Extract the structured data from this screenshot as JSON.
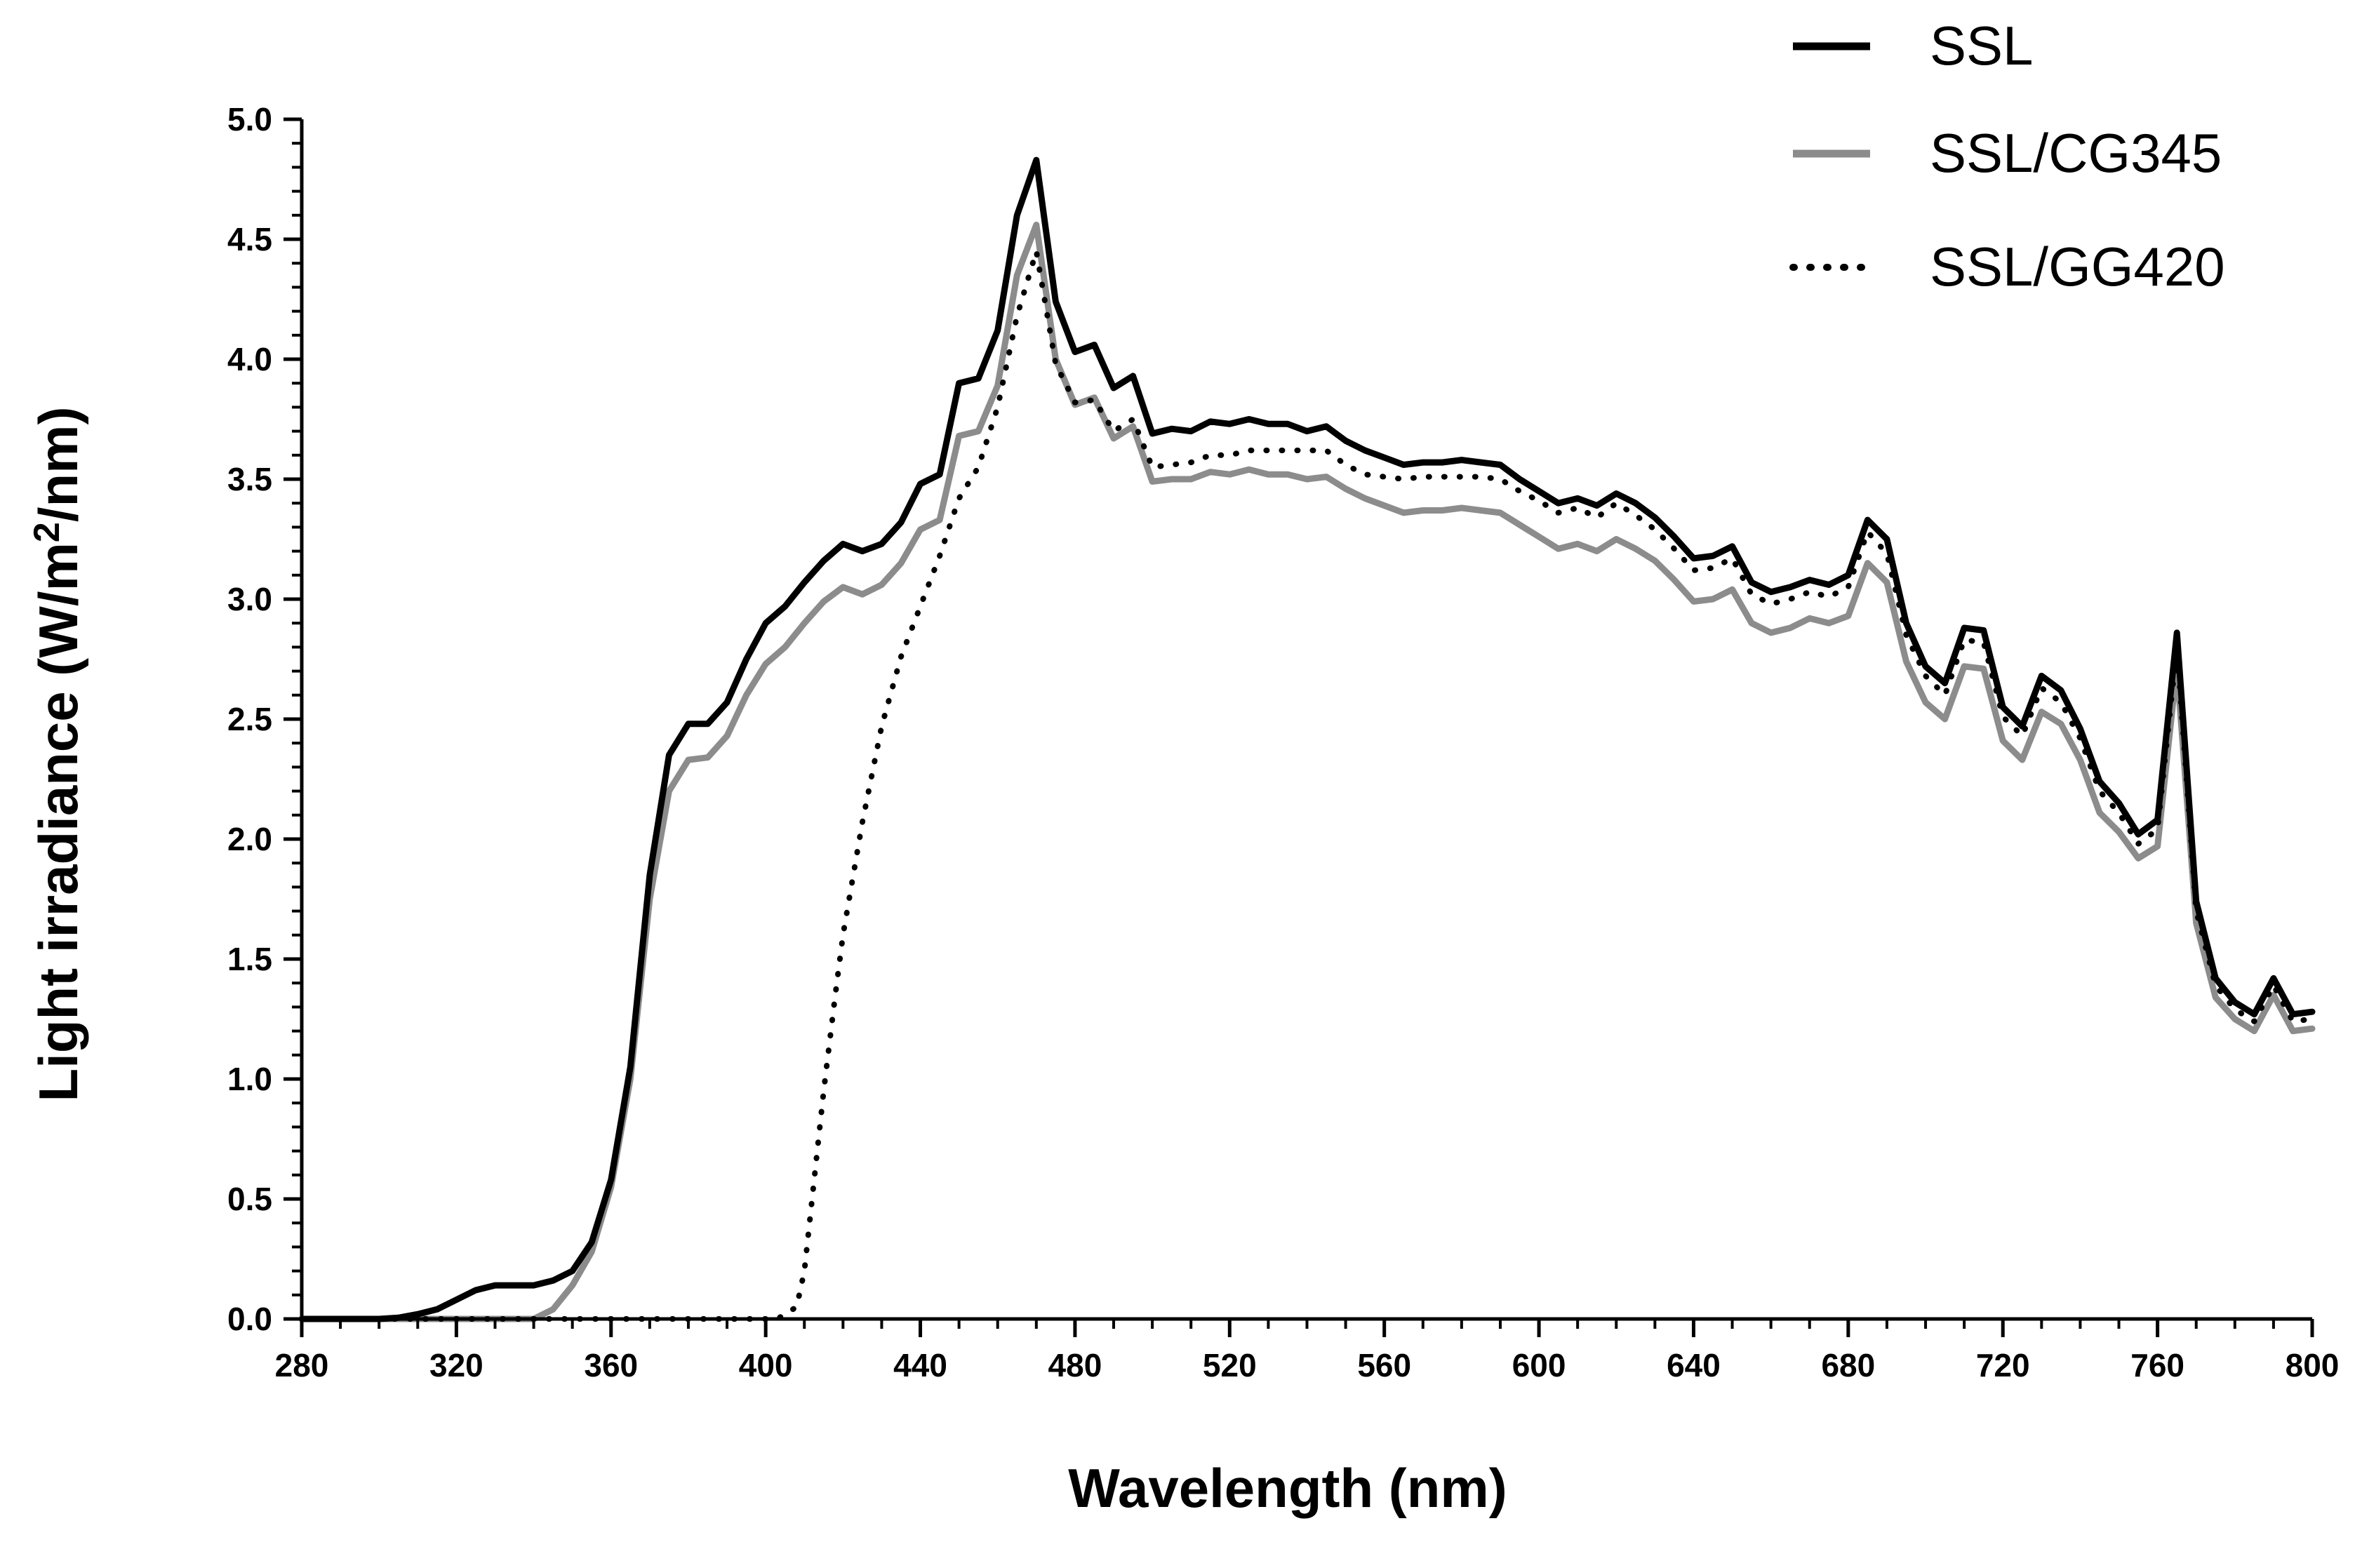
{
  "chart_data": {
    "type": "line",
    "title": "",
    "xlabel": "Wavelength (nm)",
    "ylabel_main": "Light irradiance (W/m",
    "ylabel_sup": "2",
    "ylabel_tail": "/nm)",
    "xlim": [
      280,
      800
    ],
    "ylim": [
      0,
      5
    ],
    "x_ticks": [
      280,
      320,
      360,
      400,
      440,
      480,
      520,
      560,
      600,
      640,
      680,
      720,
      760,
      800
    ],
    "y_ticks": [
      "0.0",
      "0.5",
      "1.0",
      "1.5",
      "2.0",
      "2.5",
      "3.0",
      "3.5",
      "4.0",
      "4.5",
      "5.0"
    ],
    "legend_position": "top-right",
    "series": [
      {
        "name": "SSL",
        "color": "#000000",
        "style": "solid",
        "points": [
          [
            280,
            0
          ],
          [
            290,
            0
          ],
          [
            300,
            0
          ],
          [
            305,
            0.005
          ],
          [
            310,
            0.02
          ],
          [
            315,
            0.04
          ],
          [
            320,
            0.08
          ],
          [
            325,
            0.12
          ],
          [
            330,
            0.14
          ],
          [
            335,
            0.14
          ],
          [
            340,
            0.14
          ],
          [
            345,
            0.16
          ],
          [
            350,
            0.2
          ],
          [
            355,
            0.32
          ],
          [
            360,
            0.58
          ],
          [
            365,
            1.05
          ],
          [
            370,
            1.85
          ],
          [
            375,
            2.35
          ],
          [
            380,
            2.48
          ],
          [
            385,
            2.48
          ],
          [
            390,
            2.57
          ],
          [
            395,
            2.75
          ],
          [
            400,
            2.9
          ],
          [
            405,
            2.97
          ],
          [
            410,
            3.07
          ],
          [
            415,
            3.16
          ],
          [
            420,
            3.23
          ],
          [
            425,
            3.2
          ],
          [
            430,
            3.23
          ],
          [
            435,
            3.32
          ],
          [
            440,
            3.48
          ],
          [
            445,
            3.52
          ],
          [
            450,
            3.9
          ],
          [
            455,
            3.92
          ],
          [
            460,
            4.12
          ],
          [
            465,
            4.6
          ],
          [
            470,
            4.83
          ],
          [
            475,
            4.24
          ],
          [
            480,
            4.03
          ],
          [
            485,
            4.06
          ],
          [
            490,
            3.88
          ],
          [
            495,
            3.93
          ],
          [
            500,
            3.69
          ],
          [
            505,
            3.71
          ],
          [
            510,
            3.7
          ],
          [
            515,
            3.74
          ],
          [
            520,
            3.73
          ],
          [
            525,
            3.75
          ],
          [
            530,
            3.73
          ],
          [
            535,
            3.73
          ],
          [
            540,
            3.7
          ],
          [
            545,
            3.72
          ],
          [
            550,
            3.66
          ],
          [
            555,
            3.62
          ],
          [
            560,
            3.59
          ],
          [
            565,
            3.56
          ],
          [
            570,
            3.57
          ],
          [
            575,
            3.57
          ],
          [
            580,
            3.58
          ],
          [
            585,
            3.57
          ],
          [
            590,
            3.56
          ],
          [
            595,
            3.5
          ],
          [
            600,
            3.45
          ],
          [
            605,
            3.4
          ],
          [
            610,
            3.42
          ],
          [
            615,
            3.39
          ],
          [
            620,
            3.44
          ],
          [
            625,
            3.4
          ],
          [
            630,
            3.34
          ],
          [
            635,
            3.26
          ],
          [
            640,
            3.17
          ],
          [
            645,
            3.18
          ],
          [
            650,
            3.22
          ],
          [
            655,
            3.07
          ],
          [
            660,
            3.03
          ],
          [
            665,
            3.05
          ],
          [
            670,
            3.08
          ],
          [
            675,
            3.06
          ],
          [
            680,
            3.1
          ],
          [
            685,
            3.33
          ],
          [
            690,
            3.25
          ],
          [
            695,
            2.9
          ],
          [
            700,
            2.72
          ],
          [
            705,
            2.65
          ],
          [
            710,
            2.88
          ],
          [
            715,
            2.87
          ],
          [
            720,
            2.55
          ],
          [
            725,
            2.47
          ],
          [
            730,
            2.68
          ],
          [
            735,
            2.62
          ],
          [
            740,
            2.46
          ],
          [
            745,
            2.24
          ],
          [
            750,
            2.15
          ],
          [
            755,
            2.02
          ],
          [
            760,
            2.08
          ],
          [
            765,
            2.86
          ],
          [
            770,
            1.74
          ],
          [
            775,
            1.42
          ],
          [
            780,
            1.32
          ],
          [
            785,
            1.27
          ],
          [
            790,
            1.42
          ],
          [
            795,
            1.27
          ],
          [
            800,
            1.28
          ]
        ]
      },
      {
        "name": "SSL/CG345",
        "color": "#8c8c8c",
        "style": "solid",
        "points": [
          [
            280,
            0
          ],
          [
            290,
            0
          ],
          [
            300,
            0
          ],
          [
            310,
            0
          ],
          [
            320,
            0
          ],
          [
            330,
            0
          ],
          [
            340,
            0
          ],
          [
            345,
            0.04
          ],
          [
            350,
            0.14
          ],
          [
            355,
            0.28
          ],
          [
            360,
            0.55
          ],
          [
            365,
            1.0
          ],
          [
            370,
            1.75
          ],
          [
            375,
            2.2
          ],
          [
            380,
            2.33
          ],
          [
            385,
            2.34
          ],
          [
            390,
            2.43
          ],
          [
            395,
            2.6
          ],
          [
            400,
            2.73
          ],
          [
            405,
            2.8
          ],
          [
            410,
            2.9
          ],
          [
            415,
            2.99
          ],
          [
            420,
            3.05
          ],
          [
            425,
            3.02
          ],
          [
            430,
            3.06
          ],
          [
            435,
            3.15
          ],
          [
            440,
            3.29
          ],
          [
            445,
            3.33
          ],
          [
            450,
            3.68
          ],
          [
            455,
            3.7
          ],
          [
            460,
            3.89
          ],
          [
            465,
            4.35
          ],
          [
            470,
            4.56
          ],
          [
            475,
            4.0
          ],
          [
            480,
            3.81
          ],
          [
            485,
            3.84
          ],
          [
            490,
            3.67
          ],
          [
            495,
            3.72
          ],
          [
            500,
            3.49
          ],
          [
            505,
            3.5
          ],
          [
            510,
            3.5
          ],
          [
            515,
            3.53
          ],
          [
            520,
            3.52
          ],
          [
            525,
            3.54
          ],
          [
            530,
            3.52
          ],
          [
            535,
            3.52
          ],
          [
            540,
            3.5
          ],
          [
            545,
            3.51
          ],
          [
            550,
            3.46
          ],
          [
            555,
            3.42
          ],
          [
            560,
            3.39
          ],
          [
            565,
            3.36
          ],
          [
            570,
            3.37
          ],
          [
            575,
            3.37
          ],
          [
            580,
            3.38
          ],
          [
            585,
            3.37
          ],
          [
            590,
            3.36
          ],
          [
            595,
            3.31
          ],
          [
            600,
            3.26
          ],
          [
            605,
            3.21
          ],
          [
            610,
            3.23
          ],
          [
            615,
            3.2
          ],
          [
            620,
            3.25
          ],
          [
            625,
            3.21
          ],
          [
            630,
            3.16
          ],
          [
            635,
            3.08
          ],
          [
            640,
            2.99
          ],
          [
            645,
            3.0
          ],
          [
            650,
            3.04
          ],
          [
            655,
            2.9
          ],
          [
            660,
            2.86
          ],
          [
            665,
            2.88
          ],
          [
            670,
            2.92
          ],
          [
            675,
            2.9
          ],
          [
            680,
            2.93
          ],
          [
            685,
            3.15
          ],
          [
            690,
            3.07
          ],
          [
            695,
            2.74
          ],
          [
            700,
            2.57
          ],
          [
            705,
            2.5
          ],
          [
            710,
            2.72
          ],
          [
            715,
            2.71
          ],
          [
            720,
            2.41
          ],
          [
            725,
            2.33
          ],
          [
            730,
            2.53
          ],
          [
            735,
            2.48
          ],
          [
            740,
            2.33
          ],
          [
            745,
            2.11
          ],
          [
            750,
            2.03
          ],
          [
            755,
            1.92
          ],
          [
            760,
            1.97
          ],
          [
            765,
            2.72
          ],
          [
            770,
            1.65
          ],
          [
            775,
            1.34
          ],
          [
            780,
            1.25
          ],
          [
            785,
            1.2
          ],
          [
            790,
            1.35
          ],
          [
            795,
            1.2
          ],
          [
            800,
            1.21
          ]
        ]
      },
      {
        "name": "SSL/GG420",
        "color": "#000000",
        "style": "dotted",
        "points": [
          [
            280,
            0
          ],
          [
            300,
            0
          ],
          [
            320,
            0
          ],
          [
            340,
            0
          ],
          [
            360,
            0
          ],
          [
            380,
            0
          ],
          [
            395,
            0
          ],
          [
            400,
            0
          ],
          [
            403,
            0.0
          ],
          [
            405,
            0.02
          ],
          [
            408,
            0.05
          ],
          [
            410,
            0.2
          ],
          [
            412,
            0.5
          ],
          [
            415,
            0.95
          ],
          [
            418,
            1.35
          ],
          [
            420,
            1.6
          ],
          [
            425,
            2.07
          ],
          [
            430,
            2.47
          ],
          [
            435,
            2.76
          ],
          [
            440,
            2.97
          ],
          [
            445,
            3.18
          ],
          [
            450,
            3.42
          ],
          [
            455,
            3.55
          ],
          [
            460,
            3.8
          ],
          [
            465,
            4.18
          ],
          [
            470,
            4.45
          ],
          [
            475,
            3.98
          ],
          [
            480,
            3.82
          ],
          [
            485,
            3.83
          ],
          [
            490,
            3.7
          ],
          [
            495,
            3.75
          ],
          [
            500,
            3.55
          ],
          [
            505,
            3.56
          ],
          [
            510,
            3.57
          ],
          [
            515,
            3.6
          ],
          [
            520,
            3.6
          ],
          [
            525,
            3.62
          ],
          [
            530,
            3.62
          ],
          [
            535,
            3.62
          ],
          [
            540,
            3.62
          ],
          [
            545,
            3.62
          ],
          [
            550,
            3.56
          ],
          [
            555,
            3.52
          ],
          [
            560,
            3.51
          ],
          [
            565,
            3.5
          ],
          [
            570,
            3.51
          ],
          [
            575,
            3.51
          ],
          [
            580,
            3.51
          ],
          [
            585,
            3.51
          ],
          [
            590,
            3.5
          ],
          [
            595,
            3.45
          ],
          [
            600,
            3.41
          ],
          [
            605,
            3.36
          ],
          [
            610,
            3.38
          ],
          [
            615,
            3.34
          ],
          [
            620,
            3.4
          ],
          [
            625,
            3.35
          ],
          [
            630,
            3.29
          ],
          [
            635,
            3.21
          ],
          [
            640,
            3.12
          ],
          [
            645,
            3.13
          ],
          [
            650,
            3.17
          ],
          [
            655,
            3.02
          ],
          [
            660,
            2.98
          ],
          [
            665,
            3.0
          ],
          [
            670,
            3.03
          ],
          [
            675,
            3.01
          ],
          [
            680,
            3.05
          ],
          [
            685,
            3.28
          ],
          [
            690,
            3.19
          ],
          [
            695,
            2.85
          ],
          [
            700,
            2.68
          ],
          [
            705,
            2.6
          ],
          [
            710,
            2.83
          ],
          [
            715,
            2.82
          ],
          [
            720,
            2.51
          ],
          [
            725,
            2.43
          ],
          [
            730,
            2.63
          ],
          [
            735,
            2.57
          ],
          [
            740,
            2.42
          ],
          [
            745,
            2.2
          ],
          [
            750,
            2.11
          ],
          [
            755,
            1.98
          ],
          [
            760,
            2.04
          ],
          [
            765,
            2.8
          ],
          [
            770,
            1.7
          ],
          [
            775,
            1.39
          ],
          [
            780,
            1.29
          ],
          [
            785,
            1.24
          ],
          [
            790,
            1.39
          ],
          [
            795,
            1.24
          ],
          [
            800,
            1.25
          ]
        ]
      }
    ]
  }
}
